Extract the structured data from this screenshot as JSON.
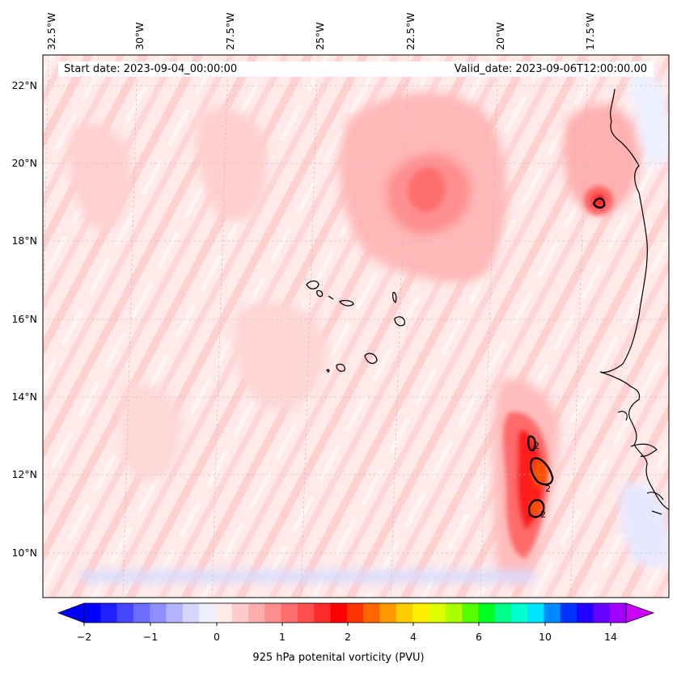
{
  "map": {
    "start_date": "Start date: 2023-09-04_00:00:00",
    "valid_date": "Valid_date: 2023-09-06T12:00:00.00",
    "lon_labels": [
      "32.5°W",
      "30°W",
      "27.5°W",
      "25°W",
      "22.5°W",
      "20°W",
      "17.5°W"
    ],
    "lat_labels": [
      "22°N",
      "20°N",
      "18°N",
      "16°N",
      "14°N",
      "12°N",
      "10°N"
    ],
    "contour_labels": [
      "2",
      "2",
      "2"
    ]
  },
  "colorbar": {
    "label": "925 hPa potenital vorticity (PVU)",
    "tick_labels": [
      "−2",
      "−1",
      "0",
      "1",
      "2",
      "4",
      "6",
      "10",
      "14"
    ],
    "colors": [
      "#0000ff",
      "#2020ff",
      "#4646ff",
      "#6c6cff",
      "#8e8eff",
      "#b2b2ff",
      "#d6d6ff",
      "#eeeeff",
      "#ffeaea",
      "#ffcccc",
      "#ffadad",
      "#ff8e8e",
      "#ff6e6e",
      "#ff4e4e",
      "#ff2a2a",
      "#ff0000",
      "#ff3300",
      "#ff6600",
      "#ff9900",
      "#ffcc00",
      "#ffee00",
      "#ddff00",
      "#aaff00",
      "#55ff00",
      "#00ff22",
      "#00ff88",
      "#00ffcc",
      "#00e5ff",
      "#0088ff",
      "#0033ff",
      "#2200ff",
      "#6600ff",
      "#a000ff"
    ],
    "under_color": "#0000ff",
    "over_color": "#cc00ff"
  },
  "colors": {
    "background_field": "#ffe9e9",
    "coast": "#000000"
  }
}
